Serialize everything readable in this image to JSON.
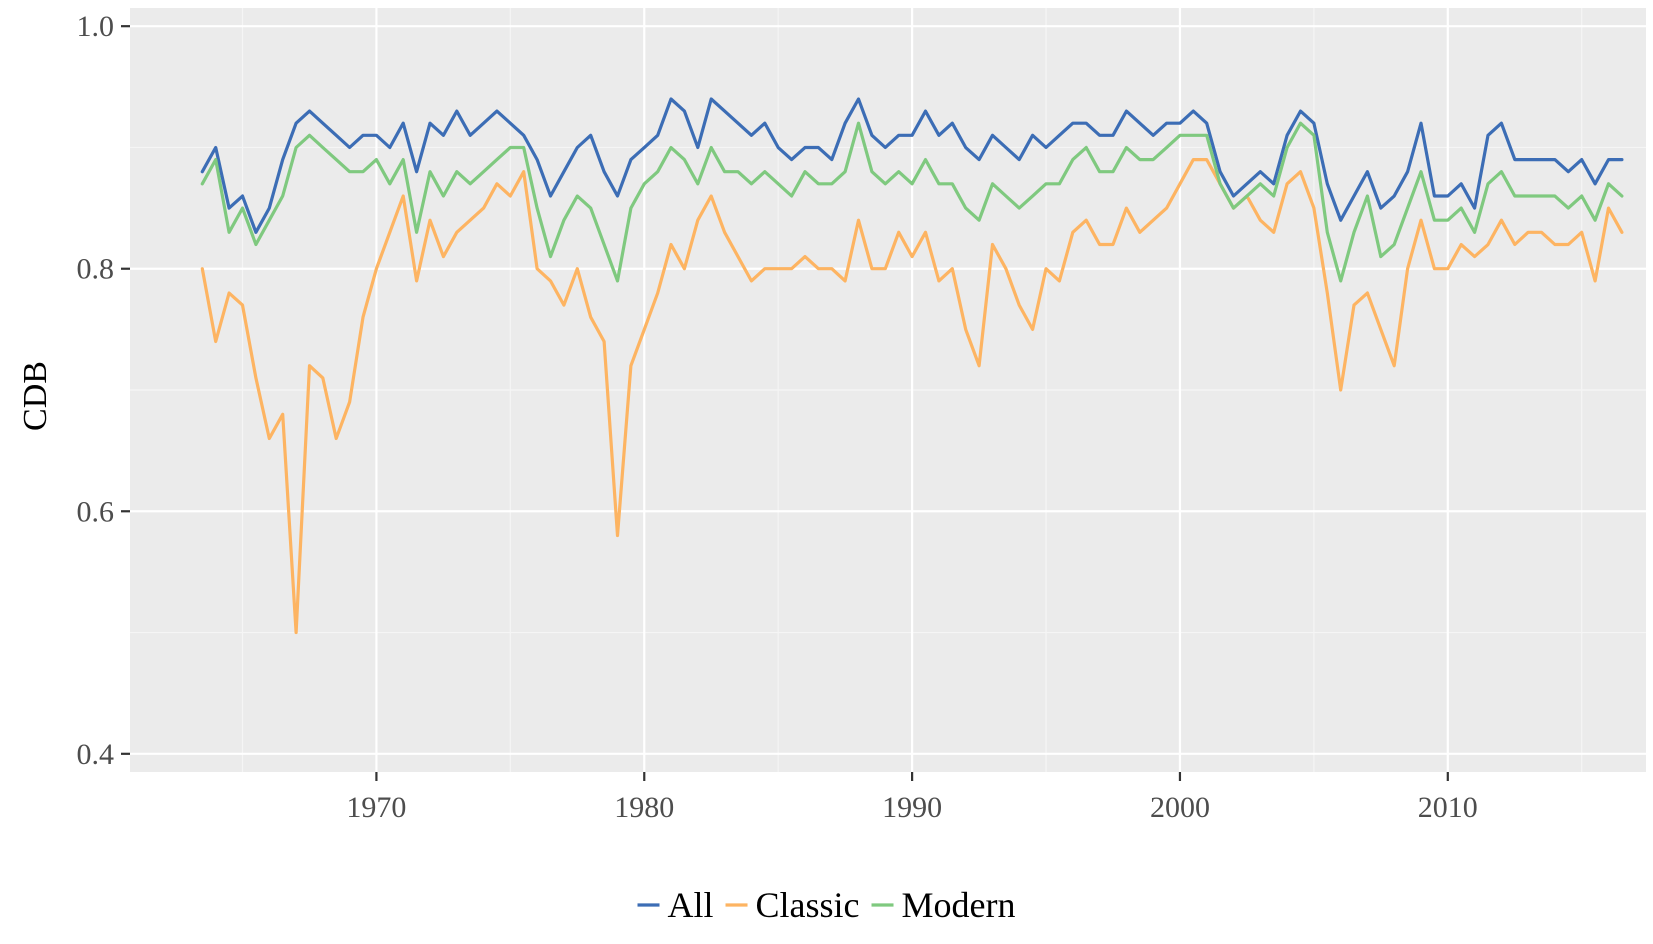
{
  "chart_data": {
    "type": "line",
    "title": "",
    "xlabel": "",
    "ylabel": "CDB",
    "xlim": [
      1960.8,
      2017.4
    ],
    "ylim": [
      0.385,
      1.015
    ],
    "xticks": [
      1970,
      1980,
      1990,
      2000,
      2010
    ],
    "xtick_labels": [
      "1970",
      "1980",
      "1990",
      "2000",
      "2010"
    ],
    "yticks": [
      0.4,
      0.6,
      0.8,
      1.0
    ],
    "ytick_labels": [
      "0.4",
      "0.6",
      "0.8",
      "1.0"
    ],
    "grid": true,
    "background": "#ebebeb",
    "legend_position": "bottom",
    "series": [
      {
        "name": "All",
        "color": "#3c6db5",
        "x": [
          1963.5,
          1964.0,
          1964.5,
          1965.0,
          1965.5,
          1966.0,
          1966.5,
          1967.0,
          1967.5,
          1968.0,
          1968.5,
          1969.0,
          1969.5,
          1970.0,
          1970.5,
          1971.0,
          1971.5,
          1972.0,
          1972.5,
          1973.0,
          1973.5,
          1974.0,
          1974.5,
          1975.0,
          1975.5,
          1976.0,
          1976.5,
          1977.0,
          1977.5,
          1978.0,
          1978.5,
          1979.0,
          1979.5,
          1980.0,
          1980.5,
          1981.0,
          1981.5,
          1982.0,
          1982.5,
          1983.0,
          1983.5,
          1984.0,
          1984.5,
          1985.0,
          1985.5,
          1986.0,
          1986.5,
          1987.0,
          1987.5,
          1988.0,
          1988.5,
          1989.0,
          1989.5,
          1990.0,
          1990.5,
          1991.0,
          1991.5,
          1992.0,
          1992.5,
          1993.0,
          1993.5,
          1994.0,
          1994.5,
          1995.0,
          1995.5,
          1996.0,
          1996.5,
          1997.0,
          1997.5,
          1998.0,
          1998.5,
          1999.0,
          1999.5,
          2000.0,
          2000.5,
          2001.0,
          2001.5,
          2002.0,
          2002.5,
          2003.0,
          2003.5,
          2004.0,
          2004.5,
          2005.0,
          2005.5,
          2006.0,
          2006.5,
          2007.0,
          2007.5,
          2008.0,
          2008.5,
          2009.0,
          2009.5,
          2010.0,
          2010.5,
          2011.0,
          2011.5,
          2012.0,
          2012.5,
          2013.0,
          2013.5,
          2014.0,
          2014.5,
          2015.0,
          2015.5,
          2016.0,
          2016.5
        ],
        "y": [
          0.88,
          0.9,
          0.85,
          0.86,
          0.83,
          0.85,
          0.89,
          0.92,
          0.93,
          0.92,
          0.91,
          0.9,
          0.91,
          0.91,
          0.9,
          0.92,
          0.88,
          0.92,
          0.91,
          0.93,
          0.91,
          0.92,
          0.93,
          0.92,
          0.91,
          0.89,
          0.86,
          0.88,
          0.9,
          0.91,
          0.88,
          0.86,
          0.89,
          0.9,
          0.91,
          0.94,
          0.93,
          0.9,
          0.94,
          0.93,
          0.92,
          0.91,
          0.92,
          0.9,
          0.89,
          0.9,
          0.9,
          0.89,
          0.92,
          0.94,
          0.91,
          0.9,
          0.91,
          0.91,
          0.93,
          0.91,
          0.92,
          0.9,
          0.89,
          0.91,
          0.9,
          0.89,
          0.91,
          0.9,
          0.91,
          0.92,
          0.92,
          0.91,
          0.91,
          0.93,
          0.92,
          0.91,
          0.92,
          0.92,
          0.93,
          0.92,
          0.88,
          0.86,
          0.87,
          0.88,
          0.87,
          0.91,
          0.93,
          0.92,
          0.87,
          0.84,
          0.86,
          0.88,
          0.85,
          0.86,
          0.88,
          0.92,
          0.86,
          0.86,
          0.87,
          0.85,
          0.91,
          0.92,
          0.89,
          0.89,
          0.89,
          0.89,
          0.88,
          0.89,
          0.87,
          0.89,
          0.89
        ]
      },
      {
        "name": "Classic",
        "color": "#fdb462",
        "x": [
          1963.5,
          1964.0,
          1964.5,
          1965.0,
          1965.5,
          1966.0,
          1966.5,
          1967.0,
          1967.5,
          1968.0,
          1968.5,
          1969.0,
          1969.5,
          1970.0,
          1970.5,
          1971.0,
          1971.5,
          1972.0,
          1972.5,
          1973.0,
          1973.5,
          1974.0,
          1974.5,
          1975.0,
          1975.5,
          1976.0,
          1976.5,
          1977.0,
          1977.5,
          1978.0,
          1978.5,
          1979.0,
          1979.5,
          1980.0,
          1980.5,
          1981.0,
          1981.5,
          1982.0,
          1982.5,
          1983.0,
          1983.5,
          1984.0,
          1984.5,
          1985.0,
          1985.5,
          1986.0,
          1986.5,
          1987.0,
          1987.5,
          1988.0,
          1988.5,
          1989.0,
          1989.5,
          1990.0,
          1990.5,
          1991.0,
          1991.5,
          1992.0,
          1992.5,
          1993.0,
          1993.5,
          1994.0,
          1994.5,
          1995.0,
          1995.5,
          1996.0,
          1996.5,
          1997.0,
          1997.5,
          1998.0,
          1998.5,
          1999.0,
          1999.5,
          2000.0,
          2000.5,
          2001.0,
          2001.5,
          2002.0,
          2002.5,
          2003.0,
          2003.5,
          2004.0,
          2004.5,
          2005.0,
          2005.5,
          2006.0,
          2006.5,
          2007.0,
          2007.5,
          2008.0,
          2008.5,
          2009.0,
          2009.5,
          2010.0,
          2010.5,
          2011.0,
          2011.5,
          2012.0,
          2012.5,
          2013.0,
          2013.5,
          2014.0,
          2014.5,
          2015.0,
          2015.5,
          2016.0,
          2016.5
        ],
        "y": [
          0.8,
          0.74,
          0.78,
          0.77,
          0.71,
          0.66,
          0.68,
          0.5,
          0.72,
          0.71,
          0.66,
          0.69,
          0.76,
          0.8,
          0.83,
          0.86,
          0.79,
          0.84,
          0.81,
          0.83,
          0.84,
          0.85,
          0.87,
          0.86,
          0.88,
          0.8,
          0.79,
          0.77,
          0.8,
          0.76,
          0.74,
          0.58,
          0.72,
          0.75,
          0.78,
          0.82,
          0.8,
          0.84,
          0.86,
          0.83,
          0.81,
          0.79,
          0.8,
          0.8,
          0.8,
          0.81,
          0.8,
          0.8,
          0.79,
          0.84,
          0.8,
          0.8,
          0.83,
          0.81,
          0.83,
          0.79,
          0.8,
          0.75,
          0.72,
          0.82,
          0.8,
          0.77,
          0.75,
          0.8,
          0.79,
          0.83,
          0.84,
          0.82,
          0.82,
          0.85,
          0.83,
          0.84,
          0.85,
          0.87,
          0.89,
          0.89,
          0.87,
          0.85,
          0.86,
          0.84,
          0.83,
          0.87,
          0.88,
          0.85,
          0.78,
          0.7,
          0.77,
          0.78,
          0.75,
          0.72,
          0.8,
          0.84,
          0.8,
          0.8,
          0.82,
          0.81,
          0.82,
          0.84,
          0.82,
          0.83,
          0.83,
          0.82,
          0.82,
          0.83,
          0.79,
          0.85,
          0.83
        ]
      },
      {
        "name": "Modern",
        "color": "#7fc97f",
        "x": [
          1963.5,
          1964.0,
          1964.5,
          1965.0,
          1965.5,
          1966.0,
          1966.5,
          1967.0,
          1967.5,
          1968.0,
          1968.5,
          1969.0,
          1969.5,
          1970.0,
          1970.5,
          1971.0,
          1971.5,
          1972.0,
          1972.5,
          1973.0,
          1973.5,
          1974.0,
          1974.5,
          1975.0,
          1975.5,
          1976.0,
          1976.5,
          1977.0,
          1977.5,
          1978.0,
          1978.5,
          1979.0,
          1979.5,
          1980.0,
          1980.5,
          1981.0,
          1981.5,
          1982.0,
          1982.5,
          1983.0,
          1983.5,
          1984.0,
          1984.5,
          1985.0,
          1985.5,
          1986.0,
          1986.5,
          1987.0,
          1987.5,
          1988.0,
          1988.5,
          1989.0,
          1989.5,
          1990.0,
          1990.5,
          1991.0,
          1991.5,
          1992.0,
          1992.5,
          1993.0,
          1993.5,
          1994.0,
          1994.5,
          1995.0,
          1995.5,
          1996.0,
          1996.5,
          1997.0,
          1997.5,
          1998.0,
          1998.5,
          1999.0,
          1999.5,
          2000.0,
          2000.5,
          2001.0,
          2001.5,
          2002.0,
          2002.5,
          2003.0,
          2003.5,
          2004.0,
          2004.5,
          2005.0,
          2005.5,
          2006.0,
          2006.5,
          2007.0,
          2007.5,
          2008.0,
          2008.5,
          2009.0,
          2009.5,
          2010.0,
          2010.5,
          2011.0,
          2011.5,
          2012.0,
          2012.5,
          2013.0,
          2013.5,
          2014.0,
          2014.5,
          2015.0,
          2015.5,
          2016.0,
          2016.5
        ],
        "y": [
          0.87,
          0.89,
          0.83,
          0.85,
          0.82,
          0.84,
          0.86,
          0.9,
          0.91,
          0.9,
          0.89,
          0.88,
          0.88,
          0.89,
          0.87,
          0.89,
          0.83,
          0.88,
          0.86,
          0.88,
          0.87,
          0.88,
          0.89,
          0.9,
          0.9,
          0.85,
          0.81,
          0.84,
          0.86,
          0.85,
          0.82,
          0.79,
          0.85,
          0.87,
          0.88,
          0.9,
          0.89,
          0.87,
          0.9,
          0.88,
          0.88,
          0.87,
          0.88,
          0.87,
          0.86,
          0.88,
          0.87,
          0.87,
          0.88,
          0.92,
          0.88,
          0.87,
          0.88,
          0.87,
          0.89,
          0.87,
          0.87,
          0.85,
          0.84,
          0.87,
          0.86,
          0.85,
          0.86,
          0.87,
          0.87,
          0.89,
          0.9,
          0.88,
          0.88,
          0.9,
          0.89,
          0.89,
          0.9,
          0.91,
          0.91,
          0.91,
          0.87,
          0.85,
          0.86,
          0.87,
          0.86,
          0.9,
          0.92,
          0.91,
          0.83,
          0.79,
          0.83,
          0.86,
          0.81,
          0.82,
          0.85,
          0.88,
          0.84,
          0.84,
          0.85,
          0.83,
          0.87,
          0.88,
          0.86,
          0.86,
          0.86,
          0.86,
          0.85,
          0.86,
          0.84,
          0.87,
          0.86
        ]
      }
    ]
  }
}
